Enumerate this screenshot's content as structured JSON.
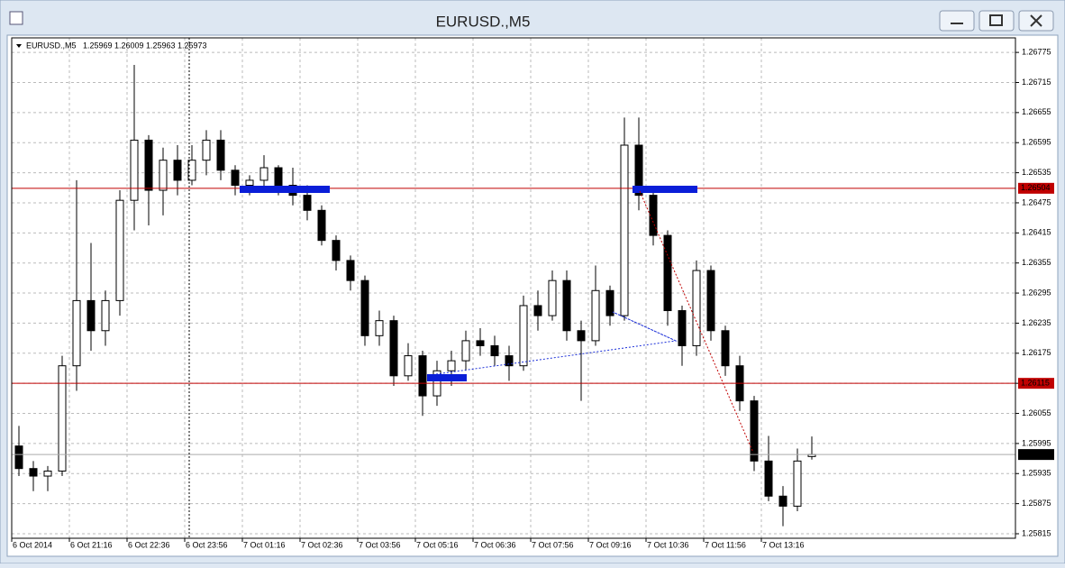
{
  "window_title": "EURUSD.,M5",
  "chart_data": {
    "type": "candlestick",
    "title": "EURUSD.,M5",
    "header_ohlc": [
      1.25969,
      1.26009,
      1.25963,
      1.25973
    ],
    "x_labels": [
      "6 Oct 2014",
      "6 Oct 21:16",
      "6 Oct 22:36",
      "6 Oct 23:56",
      "7 Oct 01:16",
      "7 Oct 02:36",
      "7 Oct 03:56",
      "7 Oct 05:16",
      "7 Oct 06:36",
      "7 Oct 07:56",
      "7 Oct 09:16",
      "7 Oct 10:36",
      "7 Oct 11:56",
      "7 Oct 13:16"
    ],
    "open": [
      1.2599,
      1.25945,
      1.2593,
      1.2594,
      1.2615,
      1.2628,
      1.2622,
      1.2628,
      1.2648,
      1.266,
      1.265,
      1.2656,
      1.2652,
      1.2656,
      1.266,
      1.2654,
      1.2651,
      1.2652,
      1.26545,
      1.2651,
      1.2649,
      1.2646,
      1.264,
      1.2636,
      1.2632,
      1.2621,
      1.2624,
      1.2613,
      1.2617,
      1.2609,
      1.2614,
      1.2616,
      1.262,
      1.2619,
      1.2617,
      1.2615,
      1.2627,
      1.2625,
      1.2632,
      1.2622,
      1.262,
      1.263,
      1.2625,
      1.2659,
      1.2649,
      1.2641,
      1.2626,
      1.2619,
      1.2634,
      1.2622,
      1.2615,
      1.2608,
      1.2596,
      1.2589,
      1.2587,
      1.25969
    ],
    "high": [
      1.2603,
      1.2596,
      1.2595,
      1.2617,
      1.2652,
      1.26395,
      1.263,
      1.265,
      1.2675,
      1.2661,
      1.26585,
      1.2659,
      1.2659,
      1.2662,
      1.2662,
      1.2655,
      1.2653,
      1.2657,
      1.2655,
      1.26545,
      1.2651,
      1.2647,
      1.2641,
      1.2637,
      1.2633,
      1.2626,
      1.2625,
      1.26195,
      1.2618,
      1.2616,
      1.2618,
      1.2622,
      1.26225,
      1.2621,
      1.2619,
      1.2629,
      1.263,
      1.2634,
      1.2634,
      1.2624,
      1.2635,
      1.2631,
      1.26645,
      1.26645,
      1.265,
      1.2642,
      1.2627,
      1.2636,
      1.2635,
      1.2623,
      1.2617,
      1.2609,
      1.2601,
      1.2591,
      1.25985,
      1.26009
    ],
    "low": [
      1.2593,
      1.259,
      1.259,
      1.2593,
      1.261,
      1.2618,
      1.2619,
      1.2625,
      1.2642,
      1.2643,
      1.2645,
      1.2649,
      1.2651,
      1.2653,
      1.2652,
      1.2649,
      1.2649,
      1.265,
      1.2649,
      1.2647,
      1.2644,
      1.2639,
      1.2634,
      1.263,
      1.2619,
      1.2619,
      1.2611,
      1.2612,
      1.2605,
      1.2607,
      1.2611,
      1.2614,
      1.2617,
      1.2615,
      1.2612,
      1.2614,
      1.2622,
      1.2624,
      1.262,
      1.2608,
      1.2619,
      1.2623,
      1.2624,
      1.2646,
      1.2639,
      1.2623,
      1.2615,
      1.2617,
      1.262,
      1.2613,
      1.2606,
      1.2594,
      1.2588,
      1.2583,
      1.2586,
      1.25963
    ],
    "close": [
      1.25945,
      1.2593,
      1.2594,
      1.2615,
      1.2628,
      1.2622,
      1.2628,
      1.2648,
      1.266,
      1.265,
      1.2656,
      1.2652,
      1.2656,
      1.266,
      1.2654,
      1.2651,
      1.2652,
      1.26545,
      1.2651,
      1.2649,
      1.2646,
      1.264,
      1.2636,
      1.2632,
      1.2621,
      1.2624,
      1.2613,
      1.2617,
      1.2609,
      1.2614,
      1.2616,
      1.262,
      1.2619,
      1.2617,
      1.2615,
      1.2627,
      1.2625,
      1.2632,
      1.2622,
      1.262,
      1.263,
      1.2625,
      1.2659,
      1.2649,
      1.2641,
      1.2626,
      1.2619,
      1.2634,
      1.2622,
      1.2615,
      1.2608,
      1.2596,
      1.2589,
      1.2587,
      1.2596,
      1.25973
    ],
    "ylim": [
      1.25806,
      1.26804
    ],
    "yticks": [
      1.26775,
      1.26715,
      1.26655,
      1.26595,
      1.26535,
      1.26475,
      1.26415,
      1.26355,
      1.26295,
      1.26235,
      1.26175,
      1.26115,
      1.26055,
      1.25995,
      1.25935,
      1.25875,
      1.25815
    ],
    "grid": true,
    "hlines": [
      {
        "value": 1.26504,
        "color": "#c00000"
      },
      {
        "value": 1.26115,
        "color": "#c00000"
      }
    ],
    "up_color": "#ffffff",
    "down_color": "#000000"
  }
}
